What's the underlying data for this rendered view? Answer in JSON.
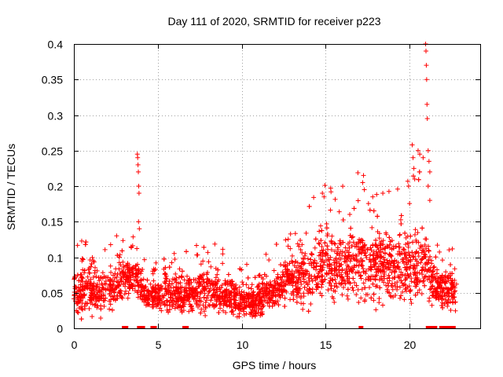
{
  "chart_data": {
    "type": "scatter",
    "title": "Day 111 of 2020, SRMTID for receiver p223",
    "xlabel": "GPS time / hours",
    "ylabel": "SRMTID / TECUs",
    "xlim": [
      0,
      24.2
    ],
    "ylim": [
      0,
      0.4
    ],
    "xticks": [
      0,
      5,
      10,
      15,
      20
    ],
    "xtick_labels": [
      "0",
      "5",
      "10",
      "15",
      "20"
    ],
    "yticks": [
      0,
      0.05,
      0.1,
      0.15,
      0.2,
      0.25,
      0.3,
      0.35,
      0.4
    ],
    "ytick_labels": [
      "0",
      "0.05",
      "0.1",
      "0.15",
      "0.2",
      "0.25",
      "0.3",
      "0.35",
      "0.4"
    ],
    "grid": true,
    "marker": "+",
    "color": "#ff0000",
    "envelope_note": "approximate typical level and spread per hour (TECU), read from the dense point cloud",
    "envelope": [
      {
        "x": 0.0,
        "mid": 0.05,
        "spread": 0.02
      },
      {
        "x": 1.0,
        "mid": 0.055,
        "spread": 0.025
      },
      {
        "x": 2.0,
        "mid": 0.05,
        "spread": 0.02
      },
      {
        "x": 3.0,
        "mid": 0.07,
        "spread": 0.025
      },
      {
        "x": 3.7,
        "mid": 0.075,
        "spread": 0.02
      },
      {
        "x": 4.3,
        "mid": 0.045,
        "spread": 0.015
      },
      {
        "x": 5.0,
        "mid": 0.045,
        "spread": 0.015
      },
      {
        "x": 6.0,
        "mid": 0.048,
        "spread": 0.018
      },
      {
        "x": 7.0,
        "mid": 0.05,
        "spread": 0.02
      },
      {
        "x": 8.0,
        "mid": 0.055,
        "spread": 0.02
      },
      {
        "x": 9.0,
        "mid": 0.05,
        "spread": 0.02
      },
      {
        "x": 10.0,
        "mid": 0.04,
        "spread": 0.018
      },
      {
        "x": 11.0,
        "mid": 0.04,
        "spread": 0.018
      },
      {
        "x": 12.0,
        "mid": 0.055,
        "spread": 0.02
      },
      {
        "x": 13.0,
        "mid": 0.07,
        "spread": 0.025
      },
      {
        "x": 14.0,
        "mid": 0.075,
        "spread": 0.03
      },
      {
        "x": 15.0,
        "mid": 0.095,
        "spread": 0.035
      },
      {
        "x": 16.0,
        "mid": 0.09,
        "spread": 0.035
      },
      {
        "x": 17.0,
        "mid": 0.09,
        "spread": 0.04
      },
      {
        "x": 18.0,
        "mid": 0.09,
        "spread": 0.04
      },
      {
        "x": 19.0,
        "mid": 0.085,
        "spread": 0.035
      },
      {
        "x": 20.0,
        "mid": 0.09,
        "spread": 0.04
      },
      {
        "x": 21.0,
        "mid": 0.09,
        "spread": 0.04
      },
      {
        "x": 21.5,
        "mid": 0.06,
        "spread": 0.02
      },
      {
        "x": 22.0,
        "mid": 0.055,
        "spread": 0.02
      },
      {
        "x": 22.8,
        "mid": 0.055,
        "spread": 0.02
      }
    ],
    "data_start_hour": 0.0,
    "data_end_hour": 22.8,
    "samples_per_hour": 140,
    "spikes": [
      {
        "x": 3.78,
        "y": 0.245
      },
      {
        "x": 3.8,
        "y": 0.24
      },
      {
        "x": 3.82,
        "y": 0.23
      },
      {
        "x": 3.84,
        "y": 0.22
      },
      {
        "x": 3.86,
        "y": 0.2
      },
      {
        "x": 3.88,
        "y": 0.19
      },
      {
        "x": 3.85,
        "y": 0.15
      },
      {
        "x": 3.9,
        "y": 0.14
      },
      {
        "x": 14.8,
        "y": 0.19
      },
      {
        "x": 14.9,
        "y": 0.185
      },
      {
        "x": 17.2,
        "y": 0.205
      },
      {
        "x": 17.25,
        "y": 0.215
      },
      {
        "x": 17.3,
        "y": 0.195
      },
      {
        "x": 17.8,
        "y": 0.185
      },
      {
        "x": 18.4,
        "y": 0.19
      },
      {
        "x": 20.15,
        "y": 0.258
      },
      {
        "x": 20.2,
        "y": 0.24
      },
      {
        "x": 20.25,
        "y": 0.225
      },
      {
        "x": 20.3,
        "y": 0.21
      },
      {
        "x": 20.5,
        "y": 0.25
      },
      {
        "x": 20.6,
        "y": 0.245
      },
      {
        "x": 20.8,
        "y": 0.24
      },
      {
        "x": 20.95,
        "y": 0.4
      },
      {
        "x": 20.97,
        "y": 0.39
      },
      {
        "x": 20.99,
        "y": 0.37
      },
      {
        "x": 21.01,
        "y": 0.35
      },
      {
        "x": 21.03,
        "y": 0.315
      },
      {
        "x": 21.05,
        "y": 0.295
      },
      {
        "x": 21.1,
        "y": 0.25
      },
      {
        "x": 21.15,
        "y": 0.235
      },
      {
        "x": 21.2,
        "y": 0.22
      },
      {
        "x": 21.1,
        "y": 0.2
      },
      {
        "x": 21.2,
        "y": 0.18
      }
    ],
    "zero_points_x": [
      3.0,
      3.1,
      3.9,
      4.0,
      4.1,
      4.7,
      4.8,
      6.6,
      6.7,
      17.1,
      21.1,
      21.3,
      21.4,
      21.5,
      21.9,
      22.0,
      22.1,
      22.2,
      22.3,
      22.5,
      22.6
    ]
  }
}
